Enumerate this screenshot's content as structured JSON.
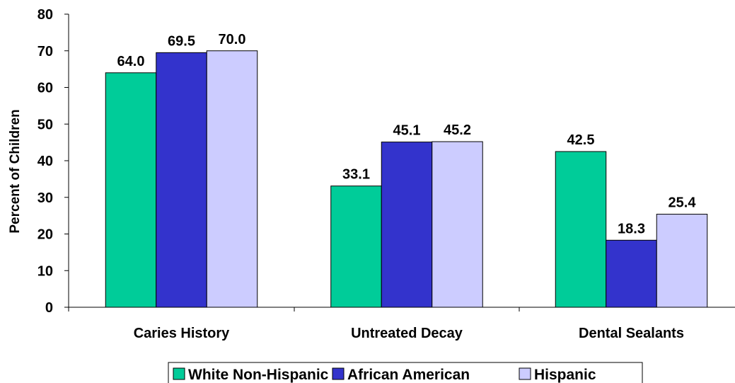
{
  "chart_data": {
    "type": "bar",
    "title": "",
    "xlabel": "",
    "ylabel": "Percent of Children",
    "ylim": [
      0,
      80
    ],
    "yticks": [
      0,
      10,
      20,
      30,
      40,
      50,
      60,
      70,
      80
    ],
    "categories": [
      "Caries History",
      "Untreated Decay",
      "Dental Sealants"
    ],
    "series": [
      {
        "name": "White Non-Hispanic",
        "color": "#00CC99",
        "values": [
          64.0,
          33.1,
          42.5
        ],
        "labels": [
          "64.0",
          "33.1",
          "42.5"
        ]
      },
      {
        "name": "African American",
        "color": "#3333CC",
        "values": [
          69.5,
          45.1,
          18.3
        ],
        "labels": [
          "69.5",
          "45.1",
          "18.3"
        ]
      },
      {
        "name": "Hispanic",
        "color": "#CCCCFF",
        "values": [
          70.0,
          45.2,
          25.4
        ],
        "labels": [
          "70.0",
          "45.2",
          "25.4"
        ]
      }
    ],
    "grid": false,
    "legend": "bottom"
  }
}
